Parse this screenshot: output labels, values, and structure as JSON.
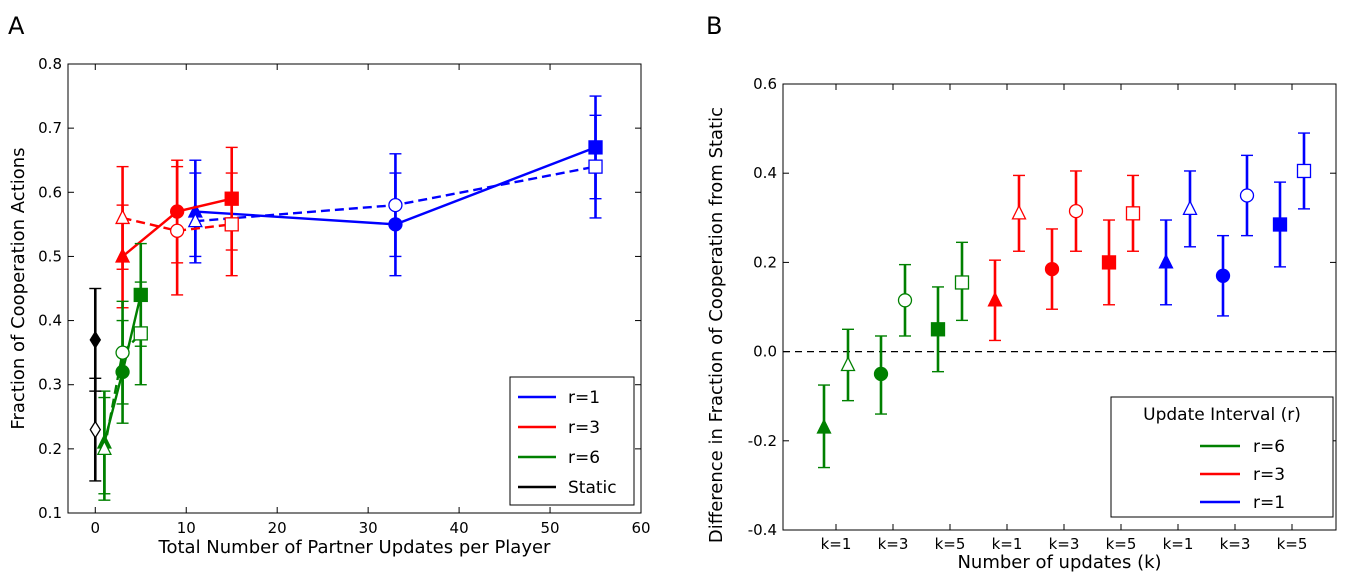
{
  "chart_data": [
    {
      "panel_label": "A",
      "type": "line",
      "xlabel": "Total Number of Partner Updates per Player",
      "ylabel": "Fraction of Cooperation Actions",
      "xlim": [
        -3,
        60
      ],
      "ylim": [
        0.1,
        0.8
      ],
      "xticks": [
        "0",
        "10",
        "20",
        "30",
        "40",
        "50",
        "60"
      ],
      "yticks": [
        "0.1",
        "0.2",
        "0.3",
        "0.4",
        "0.5",
        "0.6",
        "0.7",
        "0.8"
      ],
      "grid": false,
      "legend_position": "lower-right",
      "legend": [
        {
          "label": "r=1",
          "color": "#0000ff"
        },
        {
          "label": "r=3",
          "color": "#ff0000"
        },
        {
          "label": "r=6",
          "color": "#008000"
        },
        {
          "label": "Static",
          "color": "#000000"
        }
      ],
      "series": [
        {
          "color": "#0000ff",
          "dashed": false,
          "filled": true,
          "x": [
            11,
            33,
            55
          ],
          "y": [
            0.57,
            0.55,
            0.67
          ],
          "lo": [
            0.49,
            0.47,
            0.59
          ],
          "hi": [
            0.65,
            0.63,
            0.75
          ],
          "markers": [
            "triangle",
            "circle",
            "square"
          ]
        },
        {
          "color": "#0000ff",
          "dashed": true,
          "filled": false,
          "x": [
            11,
            33,
            55
          ],
          "y": [
            0.555,
            0.58,
            0.64
          ],
          "lo": [
            0.5,
            0.5,
            0.56
          ],
          "hi": [
            0.63,
            0.66,
            0.72
          ],
          "markers": [
            "triangle",
            "circle",
            "square"
          ]
        },
        {
          "color": "#ff0000",
          "dashed": false,
          "filled": true,
          "x": [
            3,
            9,
            15
          ],
          "y": [
            0.5,
            0.57,
            0.59
          ],
          "lo": [
            0.42,
            0.49,
            0.51
          ],
          "hi": [
            0.58,
            0.65,
            0.67
          ],
          "markers": [
            "triangle",
            "circle",
            "square"
          ]
        },
        {
          "color": "#ff0000",
          "dashed": true,
          "filled": false,
          "x": [
            3,
            9,
            15
          ],
          "y": [
            0.56,
            0.54,
            0.55
          ],
          "lo": [
            0.48,
            0.44,
            0.47
          ],
          "hi": [
            0.64,
            0.64,
            0.63
          ],
          "markers": [
            "triangle",
            "circle",
            "square"
          ]
        },
        {
          "color": "#008000",
          "dashed": false,
          "filled": true,
          "x": [
            1,
            3,
            5
          ],
          "y": [
            0.21,
            0.32,
            0.44
          ],
          "lo": [
            0.13,
            0.24,
            0.36
          ],
          "hi": [
            0.29,
            0.4,
            0.52
          ],
          "markers": [
            "triangle",
            "circle",
            "square"
          ]
        },
        {
          "color": "#008000",
          "dashed": true,
          "filled": false,
          "x": [
            1,
            3,
            5
          ],
          "y": [
            0.2,
            0.35,
            0.38
          ],
          "lo": [
            0.12,
            0.27,
            0.3
          ],
          "hi": [
            0.28,
            0.43,
            0.46
          ],
          "markers": [
            "triangle",
            "circle",
            "square"
          ]
        },
        {
          "color": "#000000",
          "dashed": false,
          "filled": true,
          "x": [
            0
          ],
          "y": [
            0.37
          ],
          "lo": [
            0.29
          ],
          "hi": [
            0.45
          ],
          "markers": [
            "diamond"
          ]
        },
        {
          "color": "#000000",
          "dashed": false,
          "filled": false,
          "x": [
            0
          ],
          "y": [
            0.23
          ],
          "lo": [
            0.15
          ],
          "hi": [
            0.31
          ],
          "markers": [
            "diamond"
          ]
        }
      ]
    },
    {
      "panel_label": "B",
      "type": "scatter",
      "xlabel": "Number of updates (k)",
      "ylabel": "Difference in Fraction of Cooperation from Static",
      "categories": [
        "k=1",
        "k=3",
        "k=5",
        "k=1",
        "k=3",
        "k=5",
        "k=1",
        "k=3",
        "k=5"
      ],
      "ylim": [
        -0.4,
        0.6
      ],
      "yticks": [
        "-0.4",
        "-0.2",
        "0.0",
        "0.2",
        "0.4",
        "0.6"
      ],
      "grid": false,
      "reference_line_y": 0.0,
      "legend_title": "Update Interval (r)",
      "legend_position": "lower-right",
      "legend": [
        {
          "label": "r=6",
          "color": "#008000"
        },
        {
          "label": "r=3",
          "color": "#ff0000"
        },
        {
          "label": "r=1",
          "color": "#0000ff"
        }
      ],
      "points": [
        {
          "cat": 0,
          "color": "#008000",
          "marker": "triangle",
          "filled": true,
          "y": -0.17,
          "lo": -0.26,
          "hi": -0.075
        },
        {
          "cat": 0,
          "color": "#008000",
          "marker": "triangle",
          "filled": false,
          "y": -0.03,
          "lo": -0.11,
          "hi": 0.05
        },
        {
          "cat": 1,
          "color": "#008000",
          "marker": "circle",
          "filled": true,
          "y": -0.05,
          "lo": -0.14,
          "hi": 0.035
        },
        {
          "cat": 1,
          "color": "#008000",
          "marker": "circle",
          "filled": false,
          "y": 0.115,
          "lo": 0.035,
          "hi": 0.195
        },
        {
          "cat": 2,
          "color": "#008000",
          "marker": "square",
          "filled": true,
          "y": 0.05,
          "lo": -0.045,
          "hi": 0.145
        },
        {
          "cat": 2,
          "color": "#008000",
          "marker": "square",
          "filled": false,
          "y": 0.155,
          "lo": 0.07,
          "hi": 0.245
        },
        {
          "cat": 3,
          "color": "#ff0000",
          "marker": "triangle",
          "filled": true,
          "y": 0.115,
          "lo": 0.025,
          "hi": 0.205
        },
        {
          "cat": 3,
          "color": "#ff0000",
          "marker": "triangle",
          "filled": false,
          "y": 0.31,
          "lo": 0.225,
          "hi": 0.395
        },
        {
          "cat": 4,
          "color": "#ff0000",
          "marker": "circle",
          "filled": true,
          "y": 0.185,
          "lo": 0.095,
          "hi": 0.275
        },
        {
          "cat": 4,
          "color": "#ff0000",
          "marker": "circle",
          "filled": false,
          "y": 0.315,
          "lo": 0.225,
          "hi": 0.405
        },
        {
          "cat": 5,
          "color": "#ff0000",
          "marker": "square",
          "filled": true,
          "y": 0.2,
          "lo": 0.105,
          "hi": 0.295
        },
        {
          "cat": 5,
          "color": "#ff0000",
          "marker": "square",
          "filled": false,
          "y": 0.31,
          "lo": 0.225,
          "hi": 0.395
        },
        {
          "cat": 6,
          "color": "#0000ff",
          "marker": "triangle",
          "filled": true,
          "y": 0.2,
          "lo": 0.105,
          "hi": 0.295
        },
        {
          "cat": 6,
          "color": "#0000ff",
          "marker": "triangle",
          "filled": false,
          "y": 0.32,
          "lo": 0.235,
          "hi": 0.405
        },
        {
          "cat": 7,
          "color": "#0000ff",
          "marker": "circle",
          "filled": true,
          "y": 0.17,
          "lo": 0.08,
          "hi": 0.26
        },
        {
          "cat": 7,
          "color": "#0000ff",
          "marker": "circle",
          "filled": false,
          "y": 0.35,
          "lo": 0.26,
          "hi": 0.44
        },
        {
          "cat": 8,
          "color": "#0000ff",
          "marker": "square",
          "filled": true,
          "y": 0.285,
          "lo": 0.19,
          "hi": 0.38
        },
        {
          "cat": 8,
          "color": "#0000ff",
          "marker": "square",
          "filled": false,
          "y": 0.405,
          "lo": 0.32,
          "hi": 0.49
        }
      ]
    }
  ]
}
